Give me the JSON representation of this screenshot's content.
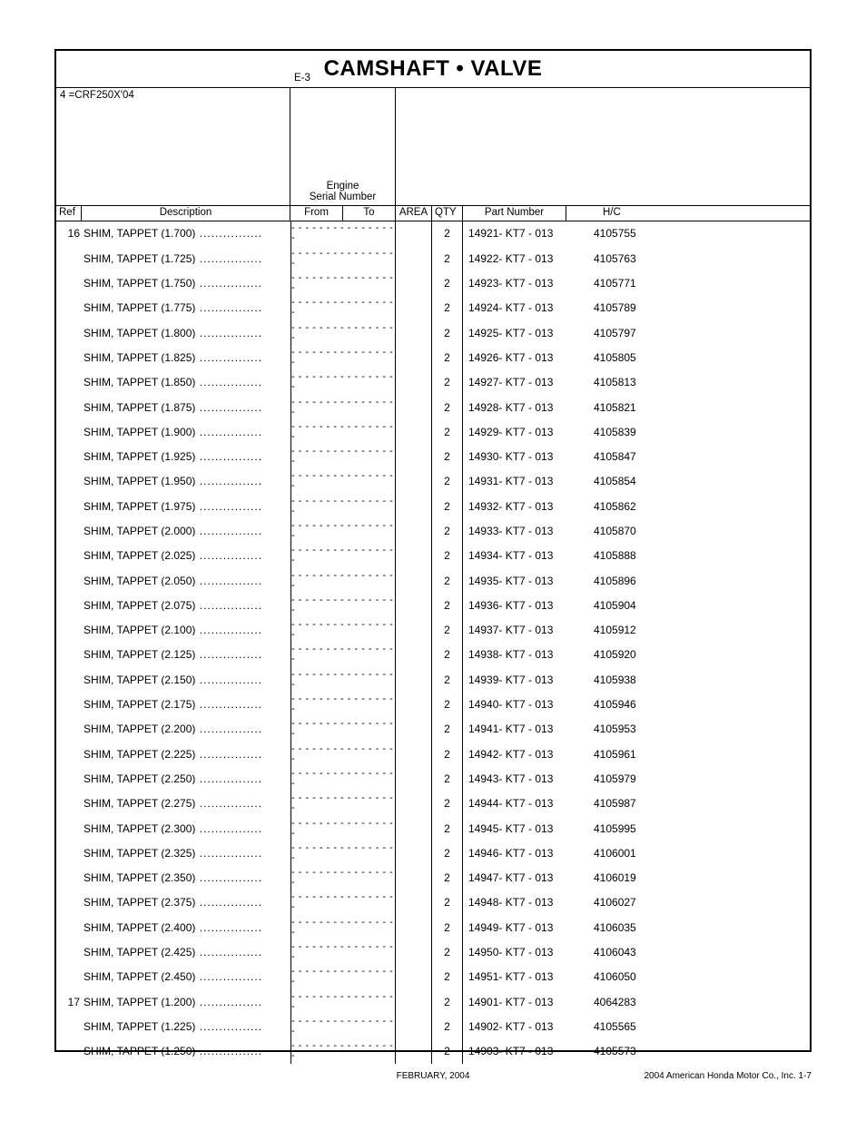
{
  "title": "CAMSHAFT • VALVE",
  "meta": {
    "model": "4 =CRF250X'04",
    "e_code": "E-3",
    "engine_label1": "Engine",
    "engine_label2": "Serial Number"
  },
  "headers": {
    "ref": "Ref",
    "desc": "Description",
    "from": "From",
    "to": "To",
    "area": "AREA",
    "qty": "QTY",
    "part": "Part Number",
    "hc": "H/C"
  },
  "serial_placeholder": "- - - - - - - -   - - - - - - - -",
  "rows": [
    {
      "ref": "16",
      "desc": "SHIM, TAPPET (1.700)",
      "qty": "2",
      "part": "14921- KT7 - 013",
      "hc": "4105755"
    },
    {
      "ref": "",
      "desc": "SHIM, TAPPET (1.725)",
      "qty": "2",
      "part": "14922- KT7 - 013",
      "hc": "4105763"
    },
    {
      "ref": "",
      "desc": "SHIM, TAPPET (1.750)",
      "qty": "2",
      "part": "14923- KT7 - 013",
      "hc": "4105771"
    },
    {
      "ref": "",
      "desc": "SHIM, TAPPET (1.775)",
      "qty": "2",
      "part": "14924- KT7 - 013",
      "hc": "4105789"
    },
    {
      "ref": "",
      "desc": "SHIM, TAPPET (1.800)",
      "qty": "2",
      "part": "14925- KT7 - 013",
      "hc": "4105797"
    },
    {
      "ref": "",
      "desc": "SHIM, TAPPET (1.825)",
      "qty": "2",
      "part": "14926- KT7 - 013",
      "hc": "4105805"
    },
    {
      "ref": "",
      "desc": "SHIM, TAPPET (1.850)",
      "qty": "2",
      "part": "14927- KT7 - 013",
      "hc": "4105813"
    },
    {
      "ref": "",
      "desc": "SHIM, TAPPET (1.875)",
      "qty": "2",
      "part": "14928- KT7 - 013",
      "hc": "4105821"
    },
    {
      "ref": "",
      "desc": "SHIM, TAPPET (1.900)",
      "qty": "2",
      "part": "14929- KT7 - 013",
      "hc": "4105839"
    },
    {
      "ref": "",
      "desc": "SHIM, TAPPET (1.925)",
      "qty": "2",
      "part": "14930- KT7 - 013",
      "hc": "4105847"
    },
    {
      "ref": "",
      "desc": "SHIM, TAPPET (1.950)",
      "qty": "2",
      "part": "14931- KT7 - 013",
      "hc": "4105854"
    },
    {
      "ref": "",
      "desc": "SHIM, TAPPET (1.975)",
      "qty": "2",
      "part": "14932- KT7 - 013",
      "hc": "4105862"
    },
    {
      "ref": "",
      "desc": "SHIM, TAPPET (2.000)",
      "qty": "2",
      "part": "14933- KT7 - 013",
      "hc": "4105870"
    },
    {
      "ref": "",
      "desc": "SHIM, TAPPET (2.025)",
      "qty": "2",
      "part": "14934- KT7 - 013",
      "hc": "4105888"
    },
    {
      "ref": "",
      "desc": "SHIM, TAPPET (2.050)",
      "qty": "2",
      "part": "14935- KT7 - 013",
      "hc": "4105896"
    },
    {
      "ref": "",
      "desc": "SHIM, TAPPET (2.075)",
      "qty": "2",
      "part": "14936- KT7 - 013",
      "hc": "4105904"
    },
    {
      "ref": "",
      "desc": "SHIM, TAPPET (2.100)",
      "qty": "2",
      "part": "14937- KT7 - 013",
      "hc": "4105912"
    },
    {
      "ref": "",
      "desc": "SHIM, TAPPET (2.125)",
      "qty": "2",
      "part": "14938- KT7 - 013",
      "hc": "4105920"
    },
    {
      "ref": "",
      "desc": "SHIM, TAPPET (2.150)",
      "qty": "2",
      "part": "14939- KT7 - 013",
      "hc": "4105938"
    },
    {
      "ref": "",
      "desc": "SHIM, TAPPET (2.175)",
      "qty": "2",
      "part": "14940- KT7 - 013",
      "hc": "4105946"
    },
    {
      "ref": "",
      "desc": "SHIM, TAPPET (2.200)",
      "qty": "2",
      "part": "14941- KT7 - 013",
      "hc": "4105953"
    },
    {
      "ref": "",
      "desc": "SHIM, TAPPET (2.225)",
      "qty": "2",
      "part": "14942- KT7 - 013",
      "hc": "4105961"
    },
    {
      "ref": "",
      "desc": "SHIM, TAPPET (2.250)",
      "qty": "2",
      "part": "14943- KT7 - 013",
      "hc": "4105979"
    },
    {
      "ref": "",
      "desc": "SHIM, TAPPET (2.275)",
      "qty": "2",
      "part": "14944- KT7 - 013",
      "hc": "4105987"
    },
    {
      "ref": "",
      "desc": "SHIM, TAPPET (2.300)",
      "qty": "2",
      "part": "14945- KT7 - 013",
      "hc": "4105995"
    },
    {
      "ref": "",
      "desc": "SHIM, TAPPET (2.325)",
      "qty": "2",
      "part": "14946- KT7 - 013",
      "hc": "4106001"
    },
    {
      "ref": "",
      "desc": "SHIM, TAPPET (2.350)",
      "qty": "2",
      "part": "14947- KT7 - 013",
      "hc": "4106019"
    },
    {
      "ref": "",
      "desc": "SHIM, TAPPET (2.375)",
      "qty": "2",
      "part": "14948- KT7 - 013",
      "hc": "4106027"
    },
    {
      "ref": "",
      "desc": "SHIM, TAPPET (2.400)",
      "qty": "2",
      "part": "14949- KT7 - 013",
      "hc": "4106035"
    },
    {
      "ref": "",
      "desc": "SHIM, TAPPET (2.425)",
      "qty": "2",
      "part": "14950- KT7 - 013",
      "hc": "4106043"
    },
    {
      "ref": "",
      "desc": "SHIM, TAPPET (2.450)",
      "qty": "2",
      "part": "14951- KT7 - 013",
      "hc": "4106050"
    },
    {
      "ref": "17",
      "desc": "SHIM, TAPPET (1.200)",
      "qty": "2",
      "part": "14901- KT7 - 013",
      "hc": "4064283"
    },
    {
      "ref": "",
      "desc": "SHIM, TAPPET (1.225)",
      "qty": "2",
      "part": "14902- KT7 - 013",
      "hc": "4105565"
    },
    {
      "ref": "",
      "desc": "SHIM, TAPPET (1.250)",
      "qty": "2",
      "part": "14903- KT7 - 013",
      "hc": "4105573"
    }
  ],
  "footer": {
    "center": "FEBRUARY, 2004",
    "right": "2004  American Honda Motor Co., Inc.     1-7"
  }
}
